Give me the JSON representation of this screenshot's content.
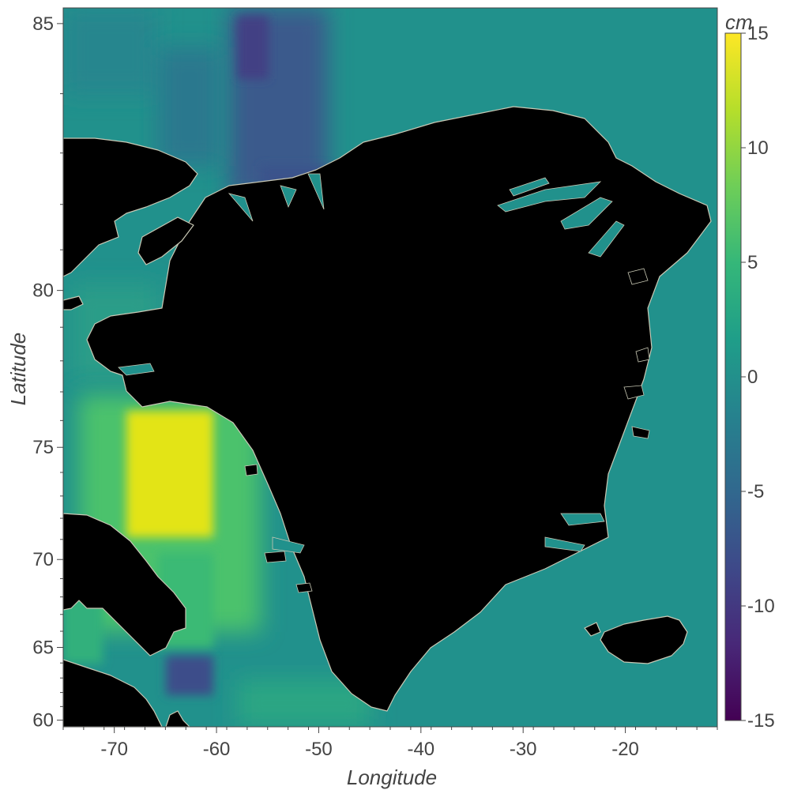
{
  "map": {
    "x_axis_title": "Longitude",
    "y_axis_title": "Latitude",
    "x_ticks": [
      {
        "value": -70,
        "label": "-70"
      },
      {
        "value": -60,
        "label": "-60"
      },
      {
        "value": -50,
        "label": "-50"
      },
      {
        "value": -40,
        "label": "-40"
      },
      {
        "value": -30,
        "label": "-30"
      },
      {
        "value": -20,
        "label": "-20"
      }
    ],
    "y_ticks": [
      {
        "value": 85,
        "label": "85"
      },
      {
        "value": 80,
        "label": "80"
      },
      {
        "value": 75,
        "label": "75"
      },
      {
        "value": 70,
        "label": "70"
      },
      {
        "value": 65,
        "label": "65"
      },
      {
        "value": 60,
        "label": "60"
      }
    ],
    "lon_range": [
      -75,
      -11
    ],
    "lat_range_axis": [
      59.5,
      85.2
    ],
    "y_scale": "mercator",
    "land_color": "#000000",
    "coast_color": "#c8c8b4",
    "ocean_base_color": "#21918c"
  },
  "colorbar": {
    "unit": "cm",
    "range": [
      -15,
      15
    ],
    "colormap": "viridis",
    "ticks": [
      {
        "value": 15,
        "label": "15"
      },
      {
        "value": 10,
        "label": "10"
      },
      {
        "value": 5,
        "label": "5"
      },
      {
        "value": 0,
        "label": "0"
      },
      {
        "value": -5,
        "label": "-5"
      },
      {
        "value": -10,
        "label": "-10"
      },
      {
        "value": -15,
        "label": "-15"
      }
    ],
    "stops": [
      "#440154",
      "#482878",
      "#3e4989",
      "#31688e",
      "#26828e",
      "#1f9e89",
      "#35b779",
      "#6ece58",
      "#b5de2b",
      "#fde725"
    ]
  }
}
